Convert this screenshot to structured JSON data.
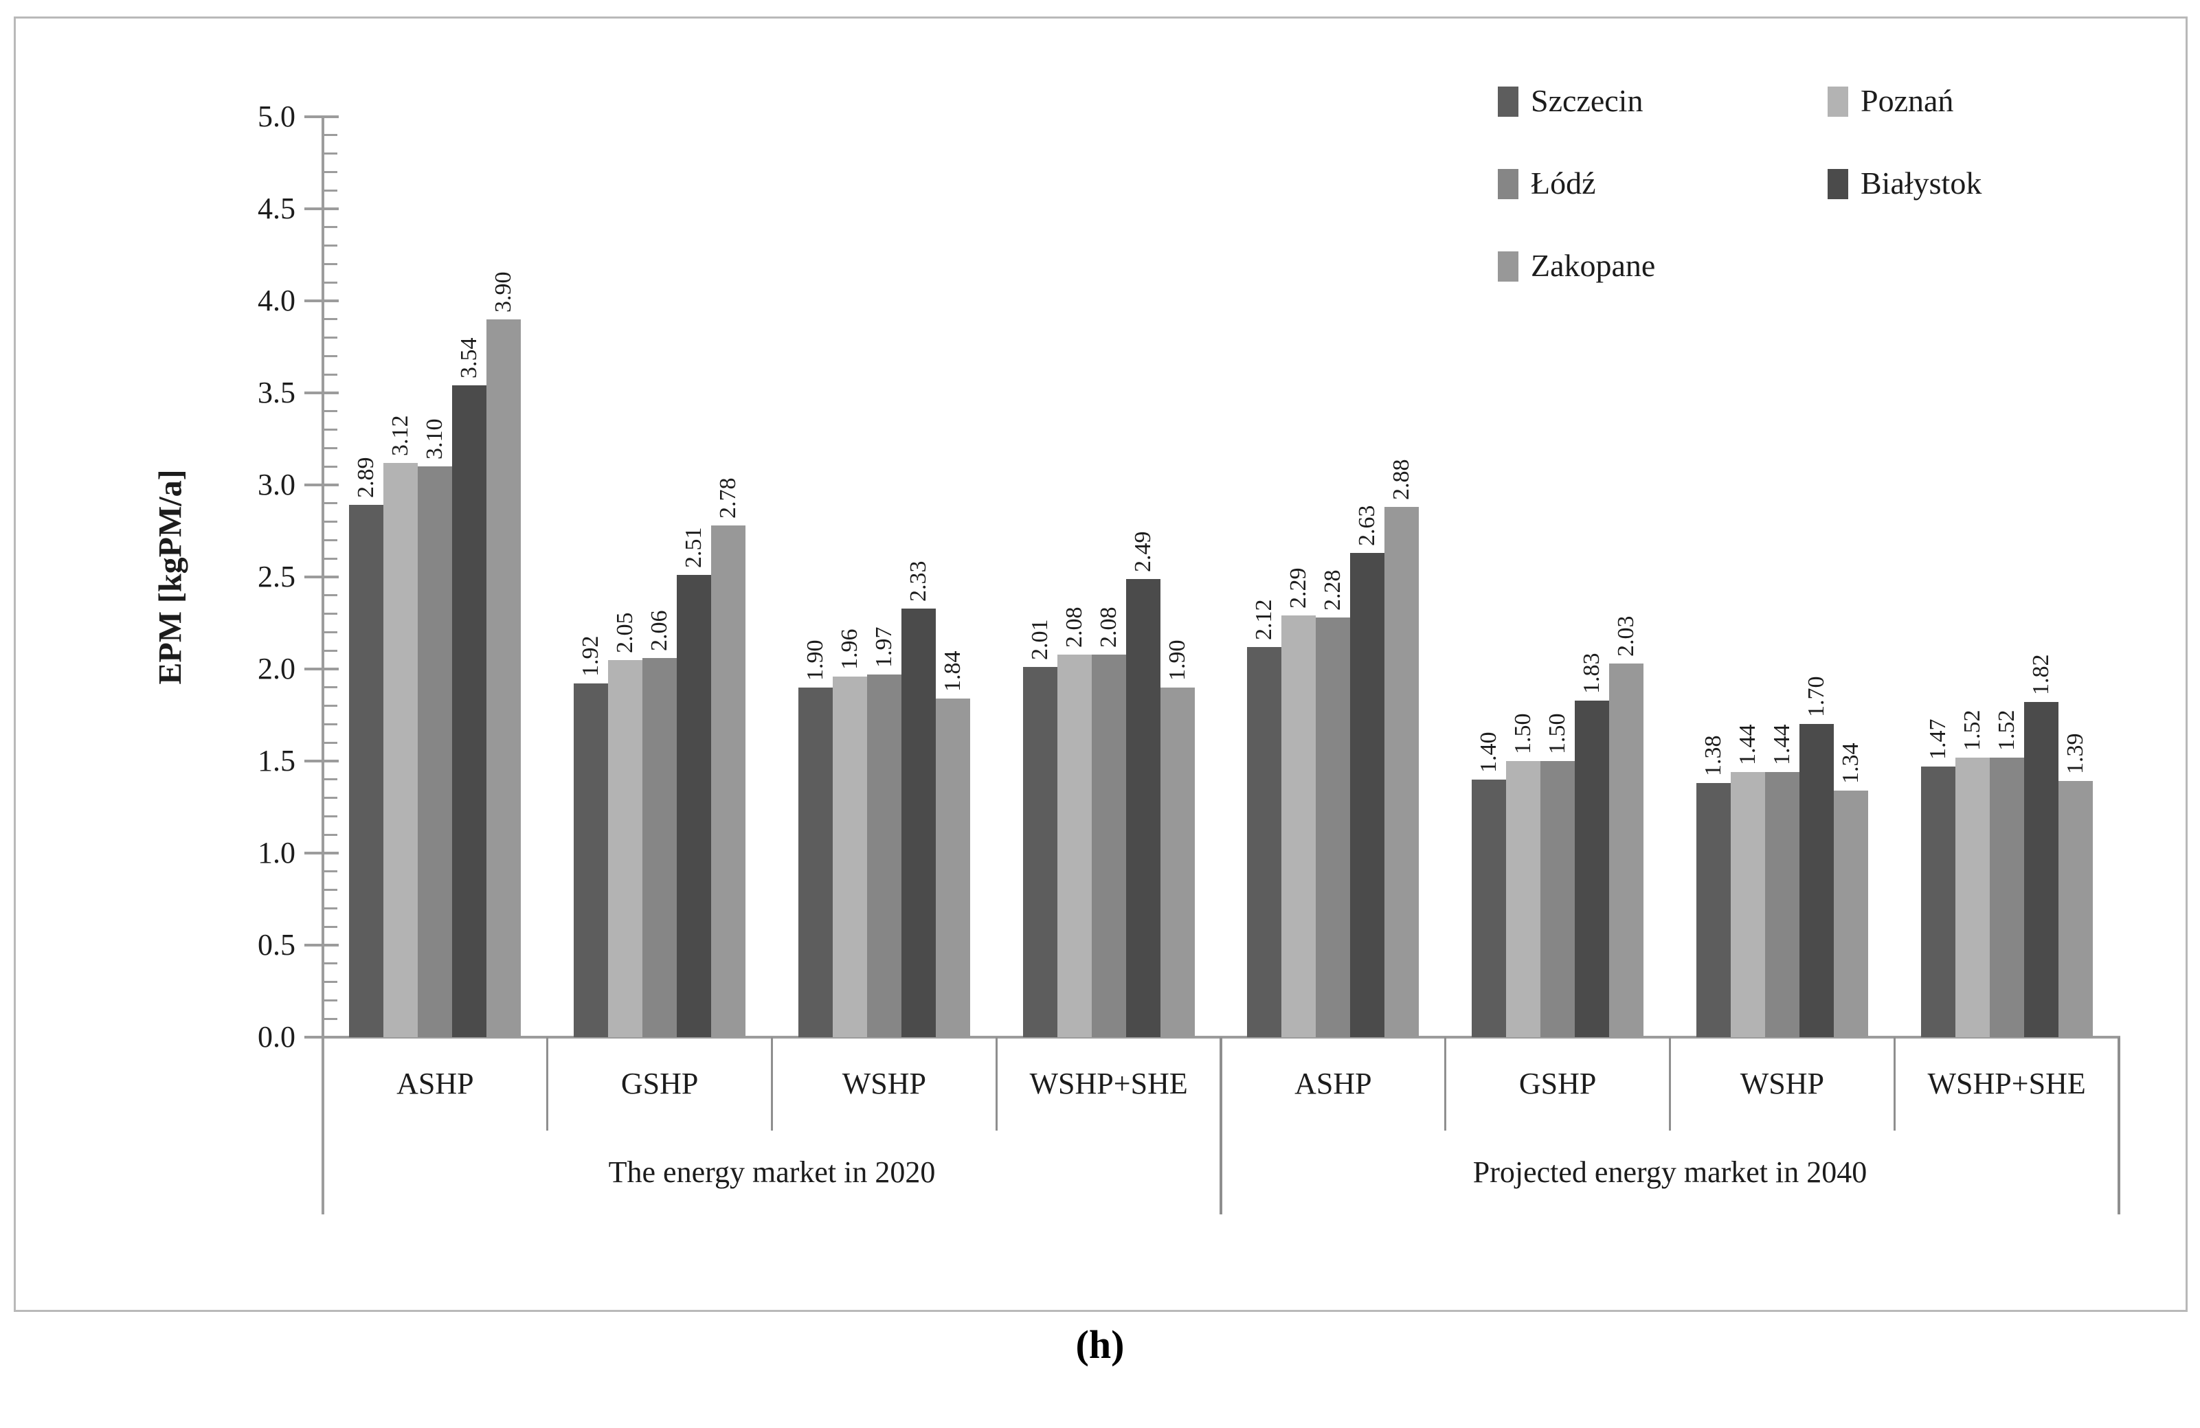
{
  "figure": {
    "caption": "(h)"
  },
  "chart_data": {
    "type": "bar",
    "title": "",
    "xlabel": "",
    "ylabel": "EPM [kgPM/a]",
    "ylim": [
      0,
      5
    ],
    "y_ticks": [
      "0.0",
      "0.5",
      "1.0",
      "1.5",
      "2.0",
      "2.5",
      "3.0",
      "3.5",
      "4.0",
      "4.5",
      "5.0"
    ],
    "y_minor_step": 0.1,
    "grid": false,
    "legend_position": "top-right",
    "value_label_format": "0.00",
    "group_labels": [
      "ASHP",
      "GSHP",
      "WSHP",
      "WSHP+SHE",
      "ASHP",
      "GSHP",
      "WSHP",
      "WSHP+SHE"
    ],
    "period_labels": [
      "The energy market in 2020",
      "Projected energy market in 2040"
    ],
    "categories": [
      "ASHP (2020)",
      "GSHP (2020)",
      "WSHP (2020)",
      "WSHP+SHE (2020)",
      "ASHP (2040)",
      "GSHP (2040)",
      "WSHP (2040)",
      "WSHP+SHE (2040)"
    ],
    "series": [
      {
        "name": "Szczecin",
        "color": "#5d5d5d",
        "values": [
          2.89,
          1.92,
          1.9,
          2.01,
          2.12,
          1.4,
          1.38,
          1.47
        ]
      },
      {
        "name": "Poznań",
        "color": "#b3b3b3",
        "values": [
          3.12,
          2.05,
          1.96,
          2.08,
          2.29,
          1.5,
          1.44,
          1.52
        ]
      },
      {
        "name": "Łódź",
        "color": "#868686",
        "values": [
          3.1,
          2.06,
          1.97,
          2.08,
          2.28,
          1.5,
          1.44,
          1.52
        ]
      },
      {
        "name": "Białystok",
        "color": "#4b4b4b",
        "values": [
          3.54,
          2.51,
          2.33,
          2.49,
          2.63,
          1.83,
          1.7,
          1.82
        ]
      },
      {
        "name": "Zakopane",
        "color": "#989898",
        "values": [
          3.9,
          2.78,
          1.84,
          1.9,
          2.88,
          2.03,
          1.34,
          1.39
        ]
      }
    ],
    "axis_color": "#9c9c9c",
    "text_color": "#1c1c1c"
  }
}
